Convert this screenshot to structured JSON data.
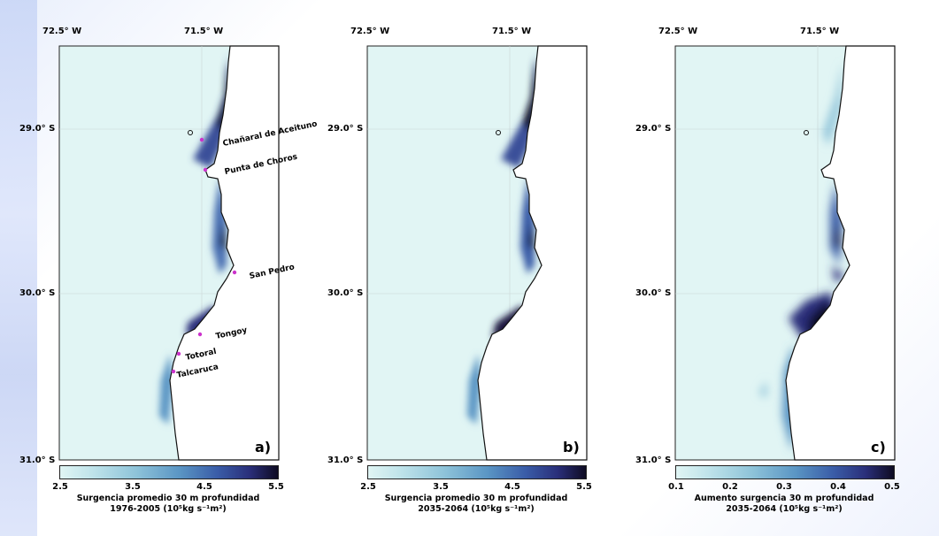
{
  "axes": {
    "lon_ticks": [
      "72.5° W",
      "71.5° W"
    ],
    "lat_ticks": [
      "29.0° S",
      "30.0° S",
      "31.0° S"
    ]
  },
  "panels": [
    {
      "letter": "a)",
      "colorbar_ticks": [
        "2.5",
        "3.5",
        "4.5",
        "5.5"
      ],
      "caption_line1": "Surgencia promedio 30 m profundidad",
      "caption_line2": "1976-2005  (10⁵kg s⁻¹m²)",
      "places": [
        "Chañaral de Aceituno",
        "Punta de Choros",
        "San Pedro",
        "Tongoy",
        "Totoral",
        "Talcaruca"
      ]
    },
    {
      "letter": "b)",
      "colorbar_ticks": [
        "2.5",
        "3.5",
        "4.5",
        "5.5"
      ],
      "caption_line1": "Surgencia promedio 30 m profundidad",
      "caption_line2": "2035-2064  (10⁵kg s⁻¹m²)"
    },
    {
      "letter": "c)",
      "colorbar_ticks": [
        "0.1",
        "0.2",
        "0.3",
        "0.4",
        "0.5"
      ],
      "caption_line1": "Aumento surgencia 30 m profundidad",
      "caption_line2": "2035-2064  (10⁵kg s⁻¹m²)"
    }
  ],
  "colors": {
    "ocean": "#e1f5f4",
    "land": "#ffffff",
    "high": "#0e0b22",
    "marker": "#cc33cc"
  }
}
